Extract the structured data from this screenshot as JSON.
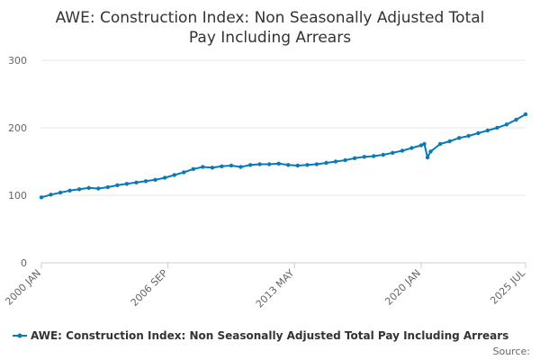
{
  "chart_data": {
    "type": "line",
    "title": "AWE: Construction Index: Non Seasonally Adjusted Total Pay Including Arrears",
    "title_lines": [
      "AWE: Construction Index: Non Seasonally Adjusted Total",
      "Pay Including Arrears"
    ],
    "xlabel": "",
    "ylabel": "",
    "ylim": [
      0,
      300
    ],
    "yticks": [
      0,
      100,
      200,
      300
    ],
    "xrange": [
      "2000 JAN",
      "2025 JUL"
    ],
    "xticks": [
      "2000 JAN",
      "2006 SEP",
      "2013 MAY",
      "2020 JAN",
      "2025 JUL"
    ],
    "grid": true,
    "legend_position": "bottom",
    "series": [
      {
        "name": "AWE: Construction Index: Non Seasonally Adjusted Total Pay Including Arrears",
        "color": "#0a7ab5",
        "marker": "circle",
        "x": [
          "2000 JAN",
          "2000 JUL",
          "2001 JAN",
          "2001 JUL",
          "2002 JAN",
          "2002 JUL",
          "2003 JAN",
          "2003 JUL",
          "2004 JAN",
          "2004 JUL",
          "2005 JAN",
          "2005 JUL",
          "2006 JAN",
          "2006 JUL",
          "2007 JAN",
          "2007 JUL",
          "2008 JAN",
          "2008 JUL",
          "2009 JAN",
          "2009 JUL",
          "2010 JAN",
          "2010 JUL",
          "2011 JAN",
          "2011 JUL",
          "2012 JAN",
          "2012 JUL",
          "2013 JAN",
          "2013 JUL",
          "2014 JAN",
          "2014 JUL",
          "2015 JAN",
          "2015 JUL",
          "2016 JAN",
          "2016 JUL",
          "2017 JAN",
          "2017 JUL",
          "2018 JAN",
          "2018 JUL",
          "2019 JAN",
          "2019 JUL",
          "2020 JAN",
          "2020 MAR",
          "2020 MAY",
          "2020 JUL",
          "2021 JAN",
          "2021 JUL",
          "2022 JAN",
          "2022 JUL",
          "2023 JAN",
          "2023 JUL",
          "2024 JAN",
          "2024 JUL",
          "2025 JAN",
          "2025 JUL"
        ],
        "values": [
          97,
          101,
          104,
          107,
          109,
          111,
          110,
          112,
          115,
          117,
          119,
          121,
          123,
          126,
          130,
          134,
          139,
          142,
          141,
          143,
          144,
          142,
          145,
          146,
          146,
          147,
          145,
          144,
          145,
          146,
          148,
          150,
          152,
          155,
          157,
          158,
          160,
          163,
          166,
          170,
          174,
          176,
          156,
          165,
          176,
          180,
          185,
          188,
          192,
          196,
          200,
          205,
          212,
          220
        ]
      }
    ],
    "source_label": "Source:"
  }
}
